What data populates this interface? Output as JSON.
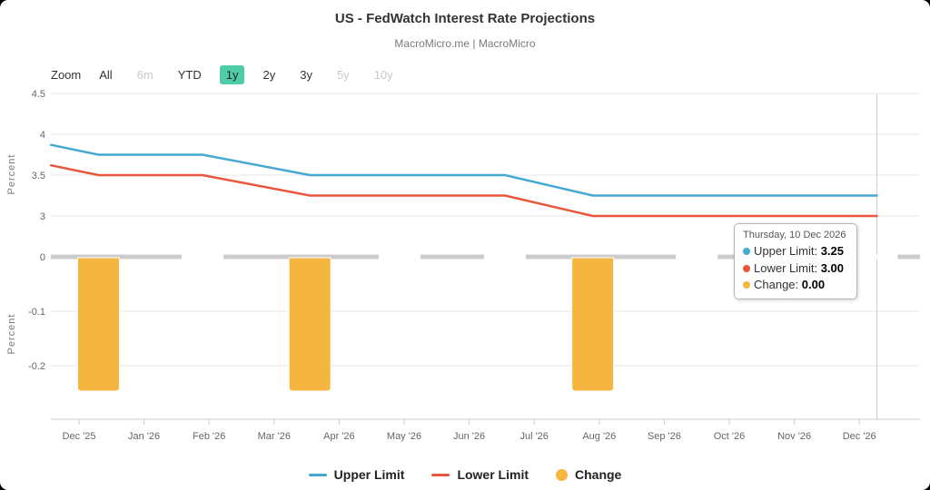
{
  "header": {
    "title": "US - FedWatch Interest Rate Projections",
    "subtitle": "MacroMicro.me | MacroMicro"
  },
  "toolbar": {
    "label": "Zoom",
    "buttons": [
      {
        "label": "All",
        "state": "normal"
      },
      {
        "label": "6m",
        "state": "disabled"
      },
      {
        "label": "YTD",
        "state": "normal"
      },
      {
        "label": "1y",
        "state": "selected"
      },
      {
        "label": "2y",
        "state": "normal"
      },
      {
        "label": "3y",
        "state": "normal"
      },
      {
        "label": "5y",
        "state": "disabled"
      },
      {
        "label": "10y",
        "state": "disabled"
      }
    ]
  },
  "chart_data": {
    "type": "line+bar",
    "title": "US - FedWatch Interest Rate Projections",
    "x_tick_labels": [
      "Dec '25",
      "Jan '26",
      "Feb '26",
      "Mar '26",
      "Apr '26",
      "May '26",
      "Jun '26",
      "Jul '26",
      "Aug '26",
      "Sep '26",
      "Oct '26",
      "Nov '26",
      "Dec '26"
    ],
    "x_unit": "months from Dec 1 2025",
    "panes": {
      "top": {
        "ylabel": "Percent",
        "ytick_labels": [
          "4.5",
          "4",
          "3.5",
          "3"
        ],
        "ytick_values": [
          4.5,
          4,
          3.5,
          3
        ],
        "series": [
          {
            "name": "Upper Limit",
            "color": "#45A9D2",
            "points": [
              {
                "m": -0.43,
                "v": 3.87
              },
              {
                "m": 0.3,
                "v": 3.75
              },
              {
                "m": 1.9,
                "v": 3.75
              },
              {
                "m": 3.55,
                "v": 3.5
              },
              {
                "m": 6.55,
                "v": 3.5
              },
              {
                "m": 7.9,
                "v": 3.25
              },
              {
                "m": 12.27,
                "v": 3.25
              }
            ]
          },
          {
            "name": "Lower Limit",
            "color": "#E8563D",
            "points": [
              {
                "m": -0.43,
                "v": 3.62
              },
              {
                "m": 0.3,
                "v": 3.5
              },
              {
                "m": 1.9,
                "v": 3.5
              },
              {
                "m": 3.55,
                "v": 3.25
              },
              {
                "m": 6.55,
                "v": 3.25
              },
              {
                "m": 7.9,
                "v": 3.0
              },
              {
                "m": 12.27,
                "v": 3.0
              }
            ]
          }
        ]
      },
      "bottom": {
        "ylabel": "Percent",
        "ytick_labels": [
          "0",
          "-0.1",
          "-0.2"
        ],
        "ytick_values": [
          0,
          -0.1,
          -0.2
        ],
        "series": {
          "name": "Change",
          "color": "#F4B63F",
          "bars": [
            {
              "m": 0.3,
              "v": -0.25
            },
            {
              "m": 1.9,
              "v": 0
            },
            {
              "m": 3.55,
              "v": -0.25
            },
            {
              "m": 4.93,
              "v": 0
            },
            {
              "m": 6.55,
              "v": 0
            },
            {
              "m": 7.9,
              "v": -0.25
            },
            {
              "m": 9.5,
              "v": 0
            },
            {
              "m": 10.9,
              "v": 0
            },
            {
              "m": 12.27,
              "v": 0
            }
          ]
        }
      }
    },
    "crosshair_month": 12.27
  },
  "tooltip": {
    "date": "Thursday, 10 Dec 2026",
    "rows": [
      {
        "label": "Upper Limit",
        "value": "3.25",
        "color": "#45A9D2"
      },
      {
        "label": "Lower Limit",
        "value": "3.00",
        "color": "#E8563D"
      },
      {
        "label": "Change",
        "value": "0.00",
        "color": "#F4B63F"
      }
    ]
  },
  "legend": {
    "items": [
      {
        "label": "Upper Limit",
        "marker": "line",
        "color": "#45A9D2"
      },
      {
        "label": "Lower Limit",
        "marker": "line",
        "color": "#E8563D"
      },
      {
        "label": "Change",
        "marker": "circle",
        "color": "#F4B63F"
      }
    ]
  },
  "colors": {
    "selected_button_bg": "#4ECCA8",
    "grid": "#E7E7E7",
    "axis_line": "#CCCCCC",
    "zero_line": "#CCCCCC",
    "crosshair": "#CCCCCC",
    "axis_text": "#666666",
    "disabled_text": "#C9C9C9"
  }
}
